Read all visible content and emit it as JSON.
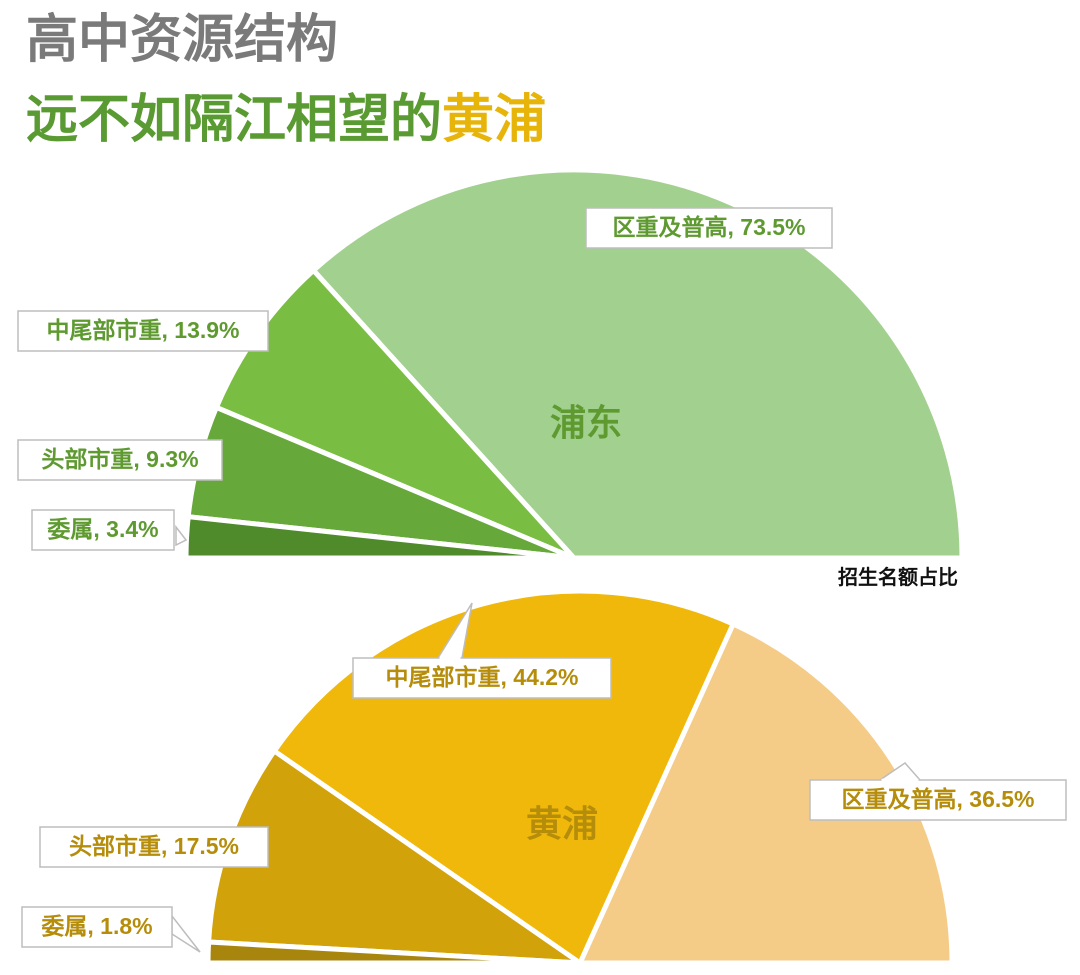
{
  "title": {
    "line1": "高中资源结构",
    "line2_main": "远不如隔江相望的",
    "line2_highlight": "黄浦"
  },
  "colors": {
    "title_gray": "#7a7a7a",
    "title_green": "#5a9a32",
    "highlight_gold": "#e7b40a",
    "pudong_label_text": "#5e9a30",
    "huangpu_label_text": "#b58d0b"
  },
  "chart_data": [
    {
      "type": "pie",
      "variant": "half",
      "center_label": "浦东",
      "caption": "招生名额占比",
      "unit": "%",
      "slices": [
        {
          "name": "区重及普高",
          "value": 73.5,
          "label": "区重及普高, 73.5%",
          "color": "#a2d08f"
        },
        {
          "name": "中尾部市重",
          "value": 13.9,
          "label": "中尾部市重, 13.9%",
          "color": "#79bd43"
        },
        {
          "name": "头部市重",
          "value": 9.3,
          "label": "头部市重, 9.3%",
          "color": "#67a83a"
        },
        {
          "name": "委属",
          "value": 3.4,
          "label": "委属, 3.4%",
          "color": "#4f8a2b"
        }
      ]
    },
    {
      "type": "pie",
      "variant": "half",
      "center_label": "黄浦",
      "unit": "%",
      "slices": [
        {
          "name": "区重及普高",
          "value": 36.5,
          "label": "区重及普高, 36.5%",
          "color": "#f4cc88"
        },
        {
          "name": "中尾部市重",
          "value": 44.2,
          "label": "中尾部市重, 44.2%",
          "color": "#f0b80a"
        },
        {
          "name": "头部市重",
          "value": 17.5,
          "label": "头部市重, 17.5%",
          "color": "#d2a20b"
        },
        {
          "name": "委属",
          "value": 1.8,
          "label": "委属, 1.8%",
          "color": "#a8860e"
        }
      ]
    }
  ]
}
